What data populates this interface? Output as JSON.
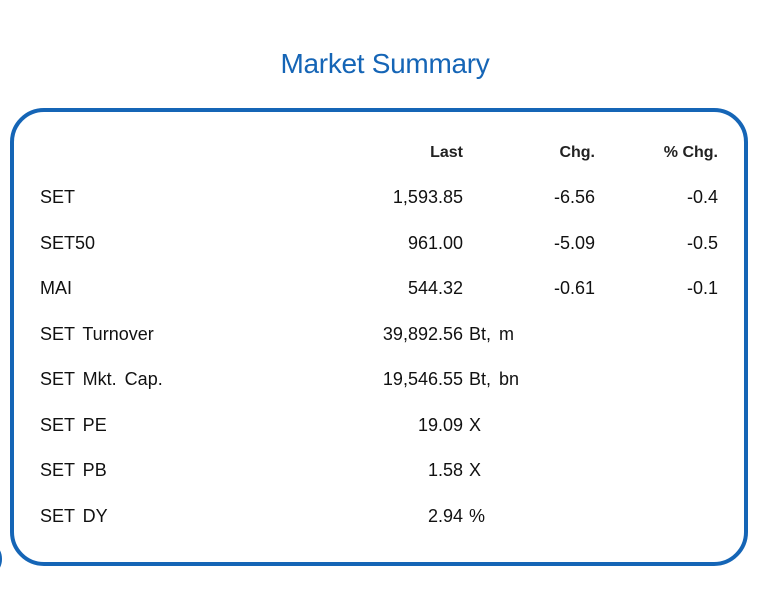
{
  "title": "Market Summary",
  "headers": {
    "last": "Last",
    "chg": "Chg.",
    "pct": "% Chg."
  },
  "rows": [
    {
      "name": "SET",
      "last": "1,593.85",
      "chg": "-6.56",
      "pct": "-0.4",
      "unit": ""
    },
    {
      "name": "SET50",
      "last": "961.00",
      "chg": "-5.09",
      "pct": "-0.5",
      "unit": ""
    },
    {
      "name": "MAI",
      "last": "544.32",
      "chg": "-0.61",
      "pct": "-0.1",
      "unit": ""
    },
    {
      "name": "SET Turnover",
      "last": "39,892.56",
      "chg": "",
      "pct": "",
      "unit": "Bt, m"
    },
    {
      "name": "SET Mkt. Cap.",
      "last": "19,546.55",
      "chg": "",
      "pct": "",
      "unit": "Bt, bn"
    },
    {
      "name": "SET PE",
      "last": "19.09",
      "chg": "",
      "pct": "",
      "unit": "X"
    },
    {
      "name": "SET PB",
      "last": "1.58",
      "chg": "",
      "pct": "",
      "unit": "X"
    },
    {
      "name": "SET DY",
      "last": "2.94",
      "chg": "",
      "pct": "",
      "unit": "%"
    }
  ],
  "colors": {
    "accent": "#1565b6"
  }
}
